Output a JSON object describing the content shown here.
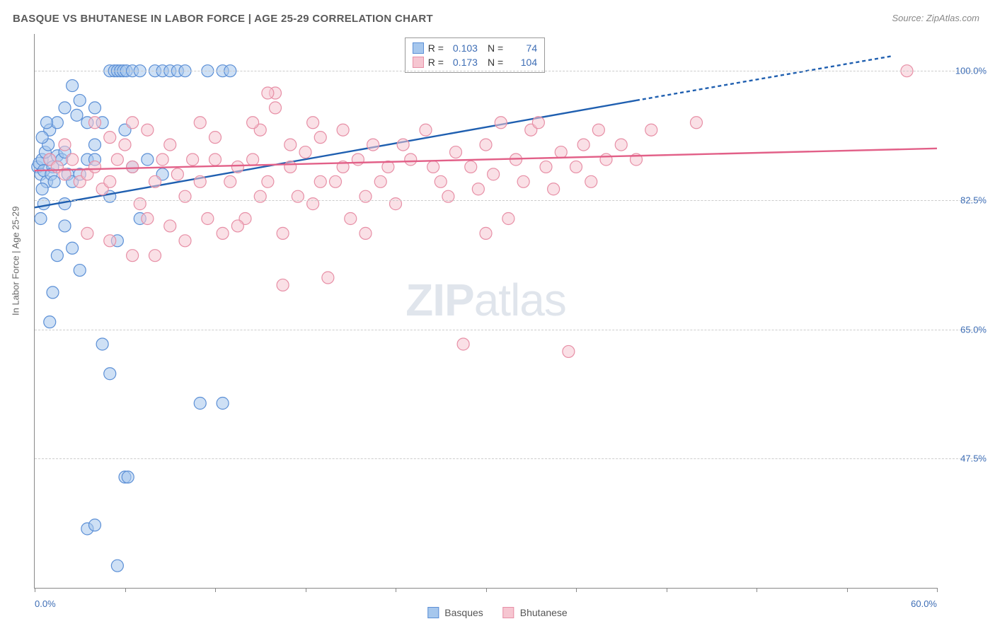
{
  "title": "BASQUE VS BHUTANESE IN LABOR FORCE | AGE 25-29 CORRELATION CHART",
  "source": "Source: ZipAtlas.com",
  "ylabel": "In Labor Force | Age 25-29",
  "watermark_a": "ZIP",
  "watermark_b": "atlas",
  "chart": {
    "type": "scatter",
    "xlim": [
      0,
      60
    ],
    "ylim": [
      30,
      105
    ],
    "xticks": [
      0,
      6,
      12,
      18,
      24,
      30,
      36,
      42,
      48,
      54,
      60
    ],
    "xtick_labels": {
      "0": "0.0%",
      "60": "60.0%"
    },
    "yticks": [
      47.5,
      65.0,
      82.5,
      100.0
    ],
    "ytick_labels": [
      "47.5%",
      "65.0%",
      "82.5%",
      "100.0%"
    ],
    "background_color": "#ffffff",
    "grid_color": "#cccccc",
    "axis_color": "#888888",
    "marker_radius": 8.5,
    "marker_opacity": 0.55,
    "marker_stroke_width": 1.2,
    "line_width": 2.4,
    "series": [
      {
        "name": "Basques",
        "fill_color": "#a6c7ed",
        "stroke_color": "#5b8fd6",
        "line_color": "#1f5fb0",
        "R": "0.103",
        "N": "74",
        "trend": {
          "x1": 0,
          "y1": 81.5,
          "x2": 40,
          "y2": 96,
          "x2_dash": 57,
          "y2_dash": 102
        },
        "points": [
          [
            0.2,
            87
          ],
          [
            0.3,
            87.5
          ],
          [
            0.5,
            88
          ],
          [
            0.4,
            86
          ],
          [
            0.6,
            86.5
          ],
          [
            0.8,
            85
          ],
          [
            1.0,
            88
          ],
          [
            1.2,
            87
          ],
          [
            0.7,
            89
          ],
          [
            0.9,
            90
          ],
          [
            1.1,
            86
          ],
          [
            1.3,
            85
          ],
          [
            1.5,
            88.5
          ],
          [
            0.5,
            84
          ],
          [
            0.6,
            82
          ],
          [
            0.4,
            80
          ],
          [
            1.8,
            88
          ],
          [
            2.0,
            89
          ],
          [
            2.2,
            86
          ],
          [
            2.5,
            85
          ],
          [
            1.0,
            92
          ],
          [
            1.5,
            93
          ],
          [
            2.8,
            94
          ],
          [
            3.0,
            86
          ],
          [
            3.5,
            88
          ],
          [
            2.0,
            79
          ],
          [
            2.5,
            76
          ],
          [
            3.0,
            73
          ],
          [
            1.2,
            70
          ],
          [
            4.0,
            88
          ],
          [
            4.5,
            93
          ],
          [
            5.0,
            100
          ],
          [
            5.3,
            100
          ],
          [
            5.5,
            100
          ],
          [
            5.7,
            100
          ],
          [
            5.9,
            100
          ],
          [
            6.1,
            100
          ],
          [
            6.5,
            100
          ],
          [
            7.0,
            100
          ],
          [
            8.0,
            100
          ],
          [
            8.5,
            100
          ],
          [
            9.0,
            100
          ],
          [
            9.5,
            100
          ],
          [
            10.0,
            100
          ],
          [
            11.5,
            100
          ],
          [
            12.5,
            100
          ],
          [
            13.0,
            100
          ],
          [
            2.5,
            98
          ],
          [
            2.0,
            95
          ],
          [
            3.0,
            96
          ],
          [
            4.0,
            90
          ],
          [
            5.0,
            83
          ],
          [
            5.5,
            77
          ],
          [
            4.5,
            63
          ],
          [
            5.0,
            59
          ],
          [
            6.0,
            45
          ],
          [
            6.2,
            45
          ],
          [
            3.5,
            38
          ],
          [
            4.0,
            38.5
          ],
          [
            5.5,
            33
          ],
          [
            11.0,
            55
          ],
          [
            12.5,
            55
          ],
          [
            3.5,
            93
          ],
          [
            4.0,
            95
          ],
          [
            6.0,
            92
          ],
          [
            7.5,
            88
          ],
          [
            8.5,
            86
          ],
          [
            1.0,
            66
          ],
          [
            0.5,
            91
          ],
          [
            0.8,
            93
          ],
          [
            1.5,
            75
          ],
          [
            2.0,
            82
          ],
          [
            6.5,
            87
          ],
          [
            7.0,
            80
          ]
        ]
      },
      {
        "name": "Bhutanese",
        "fill_color": "#f6c6d1",
        "stroke_color": "#e78fa6",
        "line_color": "#e26088",
        "R": "0.173",
        "N": "104",
        "trend": {
          "x1": 0,
          "y1": 86.5,
          "x2": 60,
          "y2": 89.5
        },
        "points": [
          [
            1.0,
            88
          ],
          [
            1.5,
            87
          ],
          [
            2.0,
            86
          ],
          [
            2.5,
            88
          ],
          [
            3.0,
            85
          ],
          [
            3.5,
            86
          ],
          [
            4.0,
            87
          ],
          [
            4.5,
            84
          ],
          [
            5.0,
            85
          ],
          [
            5.5,
            88
          ],
          [
            6.0,
            90
          ],
          [
            6.5,
            87
          ],
          [
            7.0,
            82
          ],
          [
            7.5,
            80
          ],
          [
            8.0,
            85
          ],
          [
            8.5,
            88
          ],
          [
            9.0,
            79
          ],
          [
            9.5,
            86
          ],
          [
            10.0,
            83
          ],
          [
            10.5,
            88
          ],
          [
            11.0,
            85
          ],
          [
            11.5,
            80
          ],
          [
            12.0,
            88
          ],
          [
            12.5,
            78
          ],
          [
            13.0,
            85
          ],
          [
            13.5,
            87
          ],
          [
            14.0,
            80
          ],
          [
            14.5,
            88
          ],
          [
            15.0,
            92
          ],
          [
            15.5,
            85
          ],
          [
            16.0,
            95
          ],
          [
            16.5,
            78
          ],
          [
            17.0,
            87
          ],
          [
            17.5,
            83
          ],
          [
            18.0,
            89
          ],
          [
            18.5,
            82
          ],
          [
            19.0,
            91
          ],
          [
            19.5,
            72
          ],
          [
            20.0,
            85
          ],
          [
            20.5,
            87
          ],
          [
            21.0,
            80
          ],
          [
            21.5,
            88
          ],
          [
            22.0,
            83
          ],
          [
            22.5,
            90
          ],
          [
            23.0,
            85
          ],
          [
            24.0,
            82
          ],
          [
            25.0,
            88
          ],
          [
            26.0,
            92
          ],
          [
            27.0,
            85
          ],
          [
            28.0,
            89
          ],
          [
            28.5,
            63
          ],
          [
            29.0,
            87
          ],
          [
            30.0,
            90
          ],
          [
            30.5,
            86
          ],
          [
            31.0,
            93
          ],
          [
            31.5,
            80
          ],
          [
            32.0,
            88
          ],
          [
            32.5,
            85
          ],
          [
            33.0,
            92
          ],
          [
            33.5,
            93
          ],
          [
            34.0,
            87
          ],
          [
            34.5,
            84
          ],
          [
            35.0,
            89
          ],
          [
            35.5,
            62
          ],
          [
            36.0,
            87
          ],
          [
            36.5,
            90
          ],
          [
            37.0,
            85
          ],
          [
            37.5,
            92
          ],
          [
            38.0,
            88
          ],
          [
            39.0,
            90
          ],
          [
            40.0,
            88
          ],
          [
            41.0,
            92
          ],
          [
            44.0,
            93
          ],
          [
            58.0,
            100
          ],
          [
            5.0,
            91
          ],
          [
            6.5,
            93
          ],
          [
            8.0,
            75
          ],
          [
            10.0,
            77
          ],
          [
            12.0,
            91
          ],
          [
            14.5,
            93
          ],
          [
            16.5,
            71
          ],
          [
            18.5,
            93
          ],
          [
            16.0,
            97
          ],
          [
            4.0,
            93
          ],
          [
            2.0,
            90
          ],
          [
            3.5,
            78
          ],
          [
            5.0,
            77
          ],
          [
            6.5,
            75
          ],
          [
            19.0,
            85
          ],
          [
            24.5,
            90
          ],
          [
            26.5,
            87
          ],
          [
            29.5,
            84
          ],
          [
            7.5,
            92
          ],
          [
            9.0,
            90
          ],
          [
            11.0,
            93
          ],
          [
            13.5,
            79
          ],
          [
            15.0,
            83
          ],
          [
            17.0,
            90
          ],
          [
            20.5,
            92
          ],
          [
            23.5,
            87
          ],
          [
            15.5,
            97
          ],
          [
            22.0,
            78
          ],
          [
            27.5,
            83
          ],
          [
            30.0,
            78
          ]
        ]
      }
    ]
  },
  "legend": {
    "R_label": "R =",
    "N_label": "N ="
  },
  "bottom_legend": [
    "Basques",
    "Bhutanese"
  ]
}
